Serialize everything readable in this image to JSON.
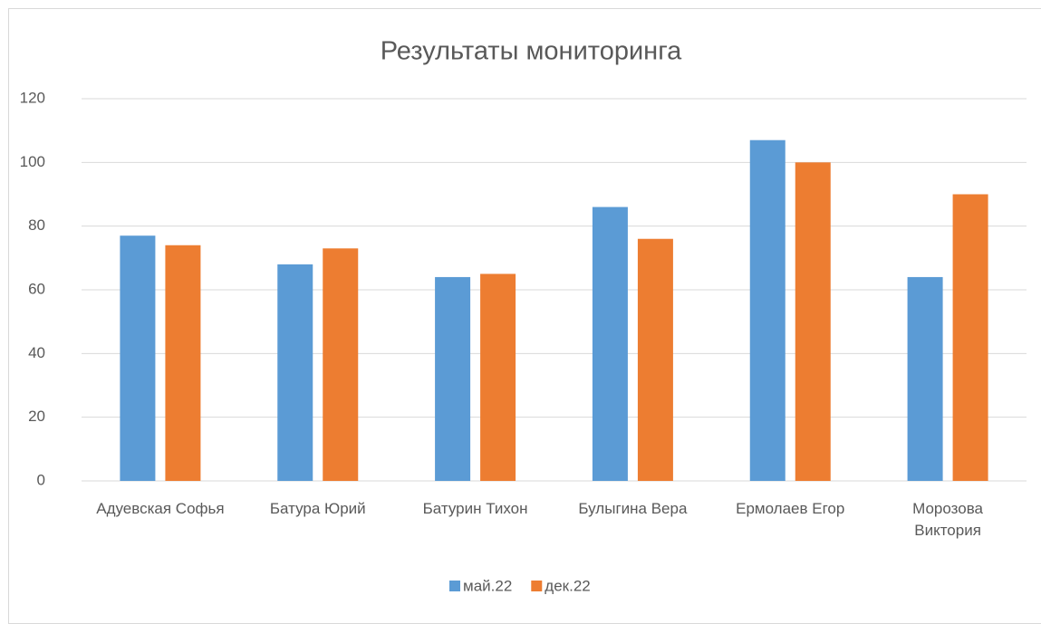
{
  "chart_data": {
    "type": "bar",
    "title": "Результаты мониторинга",
    "categories": [
      "Адуевская Софья",
      "Батура Юрий",
      "Батурин Тихон",
      "Булыгина Вера",
      "Ермолаев Егор",
      "Морозова Виктория"
    ],
    "series": [
      {
        "name": "май.22",
        "color": "#5b9bd5",
        "values": [
          77,
          68,
          64,
          86,
          107,
          64
        ]
      },
      {
        "name": "дек.22",
        "color": "#ed7d31",
        "values": [
          74,
          73,
          65,
          76,
          100,
          90
        ]
      }
    ],
    "ylim": [
      0,
      120
    ],
    "yticks": [
      0,
      20,
      40,
      60,
      80,
      100,
      120
    ],
    "grid": true,
    "legend": "bottom"
  }
}
